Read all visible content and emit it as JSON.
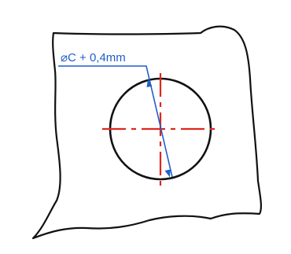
{
  "annotation": {
    "dimension_text": "⌀C + 0,4mm"
  },
  "colors": {
    "outline": "#111111",
    "dimension": "#1f5fc8",
    "centerline": "#e0261e",
    "background": "#ffffff"
  }
}
